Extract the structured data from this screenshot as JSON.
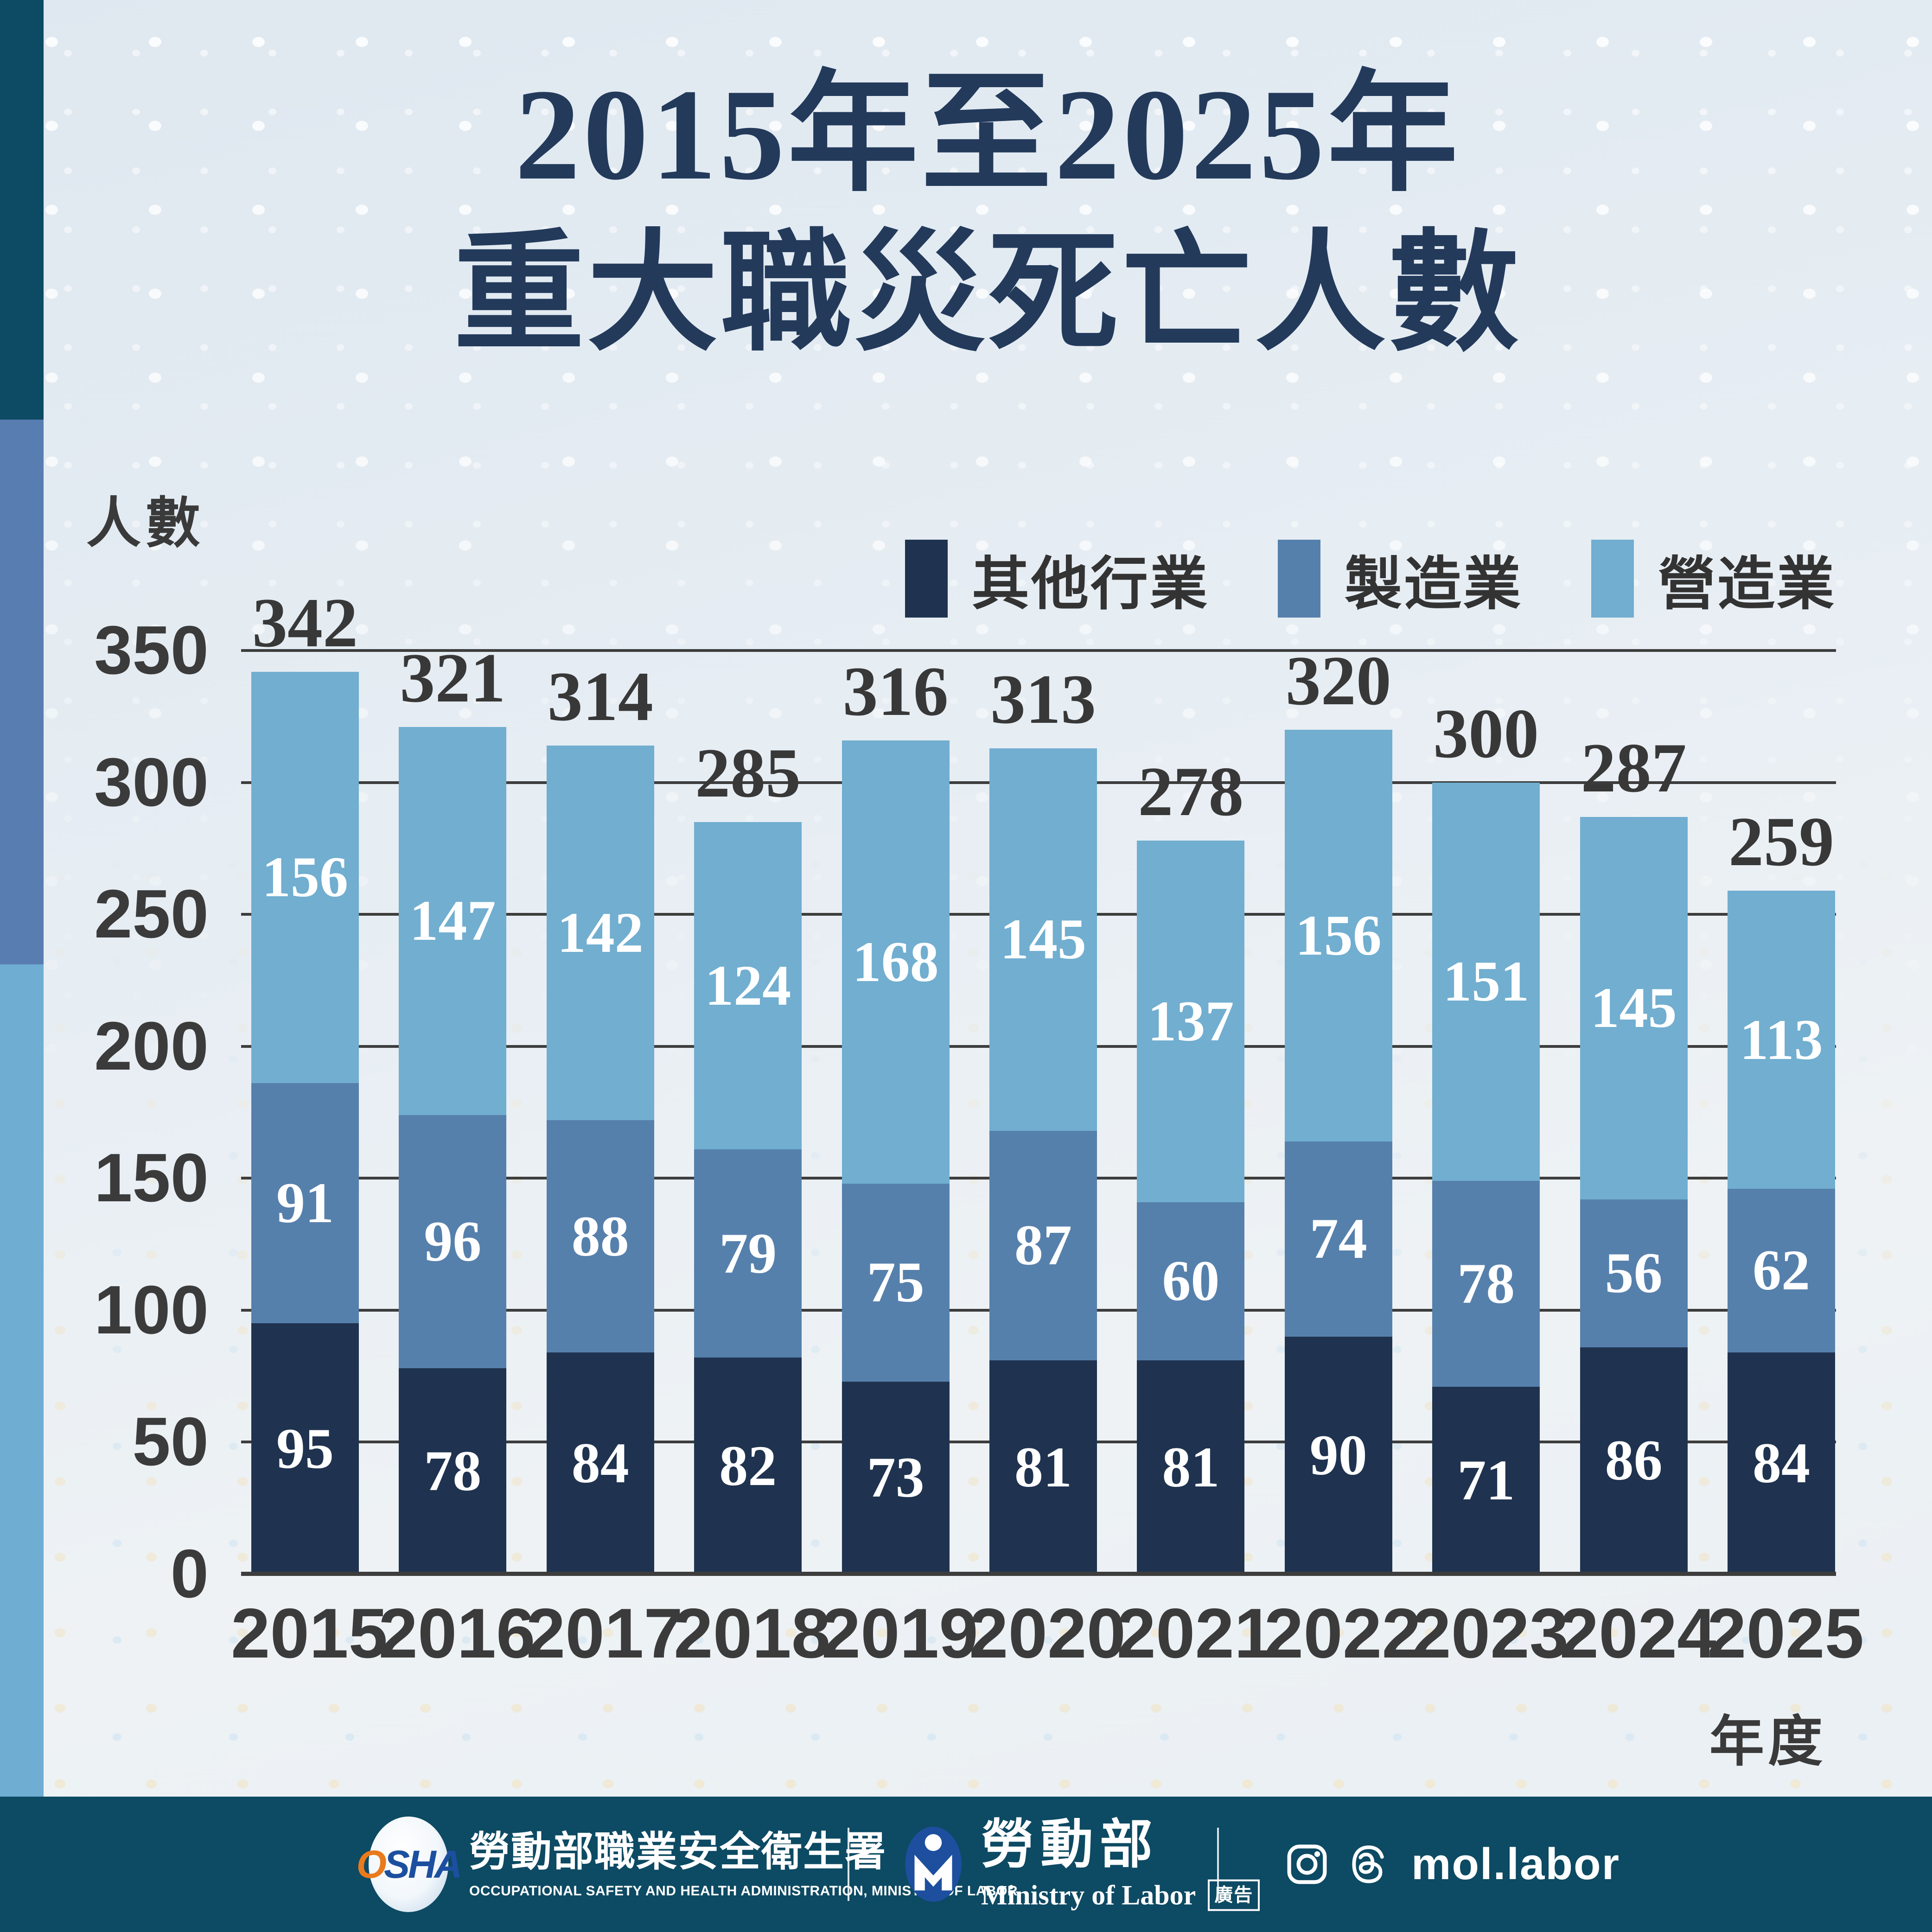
{
  "header": {
    "title_line1": "2015年至2025年",
    "title_line2": "重大職災死亡人數",
    "title_color": "#233a5b"
  },
  "chart_data": {
    "type": "bar",
    "stacked": true,
    "title": "2015年至2025年 重大職災死亡人數",
    "categories": [
      "2015",
      "2016",
      "2017",
      "2018",
      "2019",
      "2020",
      "2021",
      "2022",
      "2023",
      "2024",
      "2025"
    ],
    "series": [
      {
        "name": "其他行業",
        "color": "#1f3350",
        "values": [
          95,
          78,
          84,
          82,
          73,
          81,
          81,
          90,
          71,
          86,
          84
        ]
      },
      {
        "name": "製造業",
        "color": "#5680ac",
        "values": [
          91,
          96,
          88,
          79,
          75,
          87,
          60,
          74,
          78,
          56,
          62
        ]
      },
      {
        "name": "營造業",
        "color": "#71aed0",
        "values": [
          156,
          147,
          142,
          124,
          168,
          145,
          137,
          156,
          151,
          145,
          113
        ]
      }
    ],
    "totals": [
      342,
      321,
      314,
      285,
      316,
      313,
      278,
      320,
      300,
      287,
      259
    ],
    "ylabel": "人數",
    "xlabel": "年度",
    "ylim": [
      0,
      350
    ],
    "ytick_step": 50,
    "grid": true,
    "grid_color": "#3d3d3d",
    "legend_position": "top-right"
  },
  "footer": {
    "osha": {
      "logo_o": "O",
      "logo_sha": "SHA",
      "name_zh": "勞動部職業安全衛生署",
      "name_en": "OCCUPATIONAL SAFETY AND HEALTH ADMINISTRATION, MINISTRY OF LABOR"
    },
    "mol": {
      "name_zh": "勞動部",
      "name_en": "Ministry  of  Labor",
      "ad_badge": "廣告"
    },
    "social": {
      "handle": "mol.labor"
    },
    "bg_color": "#0d4a63"
  },
  "side_stripe_colors": [
    "#0d4a63",
    "#587db0",
    "#6fadd2"
  ]
}
